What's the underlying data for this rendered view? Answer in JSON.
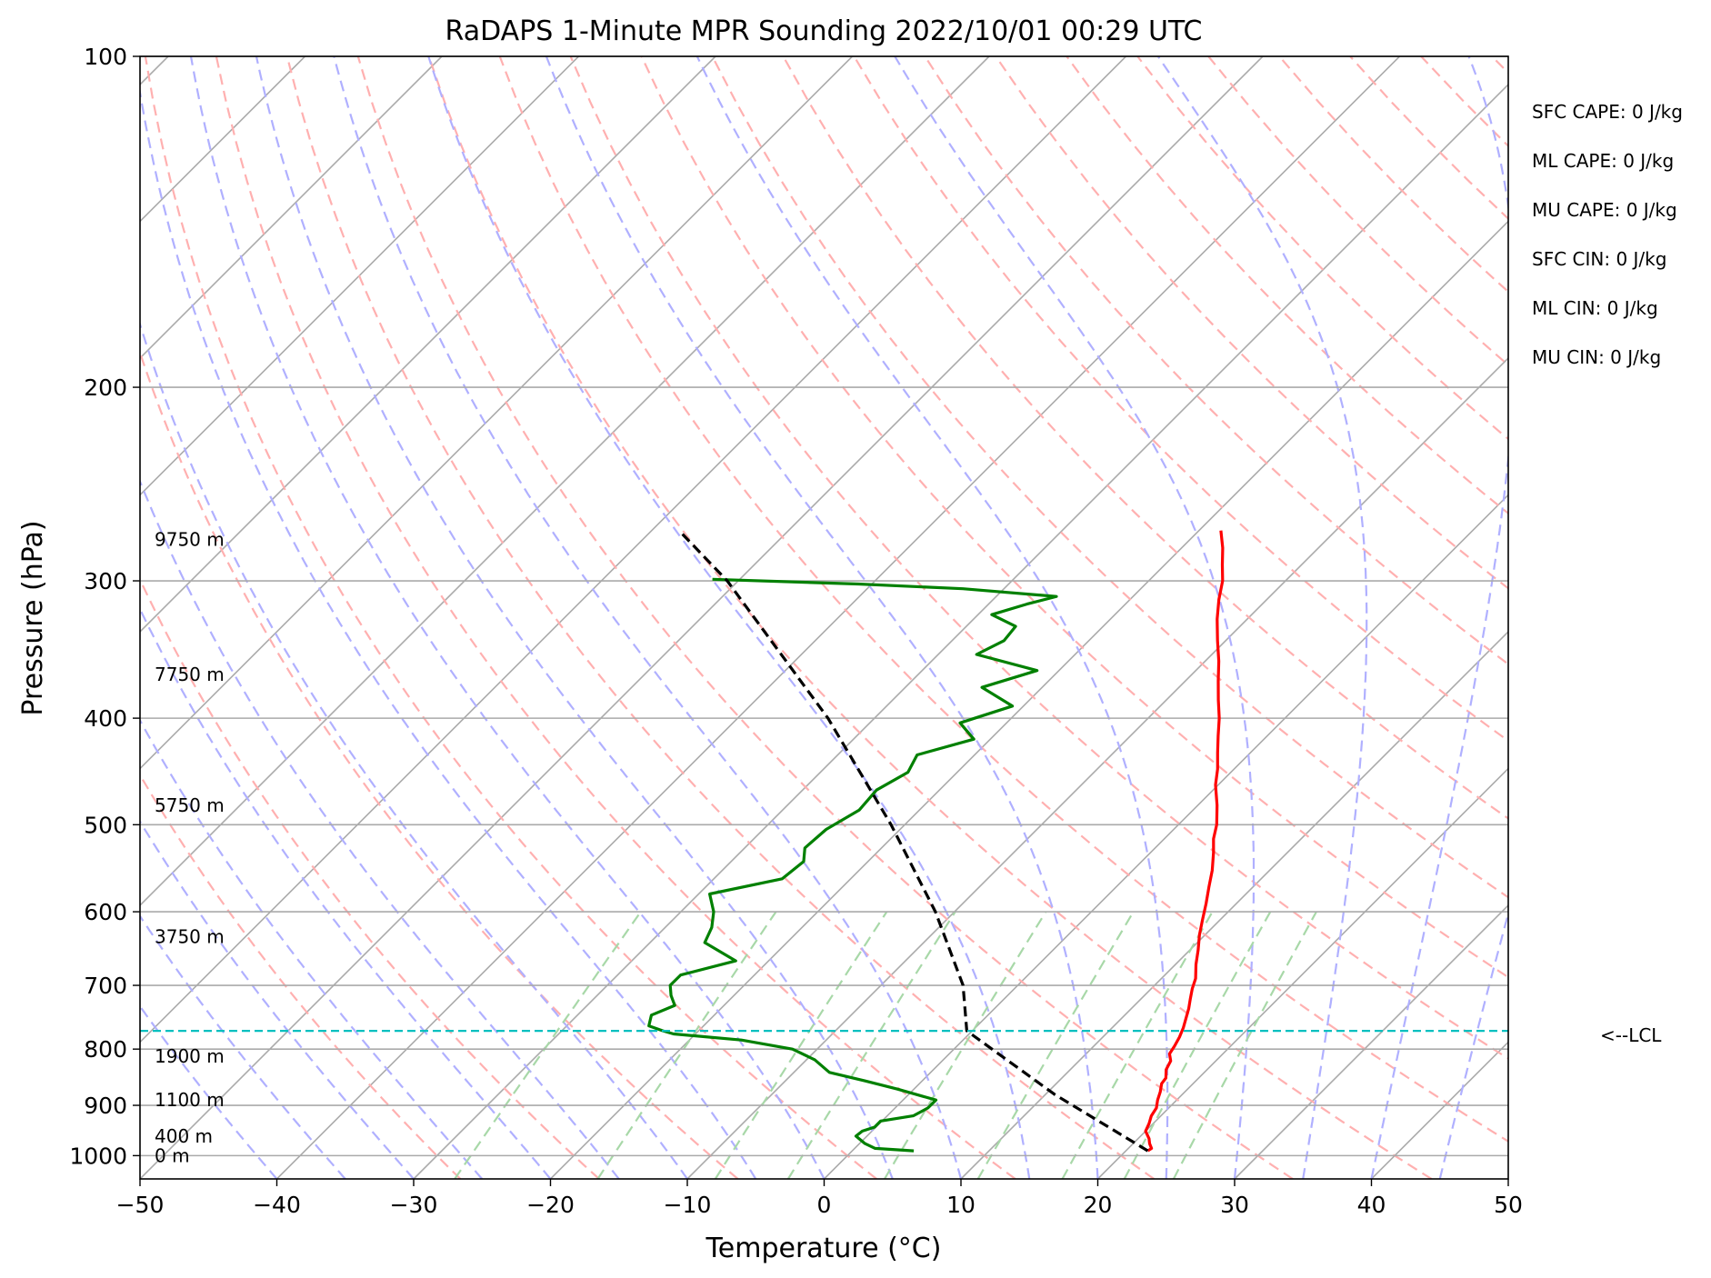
{
  "chart_data": {
    "type": "line",
    "subtype": "skew-t log-p",
    "title": "RaDAPS 1-Minute MPR Sounding 2022/10/01 00:29 UTC",
    "xlabel": "Temperature (°C)",
    "ylabel": "Pressure (hPa)",
    "xlim": [
      -50,
      50
    ],
    "ylim": [
      1050,
      100
    ],
    "y_scale": "log",
    "grid": true,
    "x_ticks": [
      "−50",
      "−40",
      "−30",
      "−20",
      "−10",
      "0",
      "10",
      "20",
      "30",
      "40",
      "50"
    ],
    "y_ticks": [
      100,
      200,
      300,
      400,
      500,
      600,
      700,
      800,
      900,
      1000
    ],
    "series": [
      {
        "name": "",
        "color": "#ff0000",
        "points": [
          [
            990,
            21.6
          ],
          [
            985,
            21.7
          ],
          [
            975,
            21.2
          ],
          [
            965,
            20.8
          ],
          [
            950,
            20.0
          ],
          [
            935,
            19.7
          ],
          [
            920,
            19.3
          ],
          [
            905,
            19.1
          ],
          [
            890,
            18.6
          ],
          [
            875,
            18.2
          ],
          [
            860,
            17.7
          ],
          [
            850,
            17.6
          ],
          [
            835,
            17.0
          ],
          [
            820,
            16.7
          ],
          [
            808,
            16.1
          ],
          [
            795,
            15.9
          ],
          [
            780,
            15.6
          ],
          [
            765,
            15.2
          ],
          [
            750,
            14.7
          ],
          [
            735,
            14.2
          ],
          [
            720,
            13.6
          ],
          [
            705,
            13.0
          ],
          [
            690,
            12.5
          ],
          [
            670,
            11.5
          ],
          [
            650,
            10.6
          ],
          [
            630,
            9.6
          ],
          [
            610,
            8.7
          ],
          [
            590,
            7.8
          ],
          [
            570,
            6.8
          ],
          [
            550,
            5.8
          ],
          [
            530,
            4.6
          ],
          [
            515,
            3.6
          ],
          [
            500,
            2.8
          ],
          [
            480,
            1.4
          ],
          [
            460,
            -0.2
          ],
          [
            445,
            -1.2
          ],
          [
            430,
            -2.4
          ],
          [
            415,
            -3.6
          ],
          [
            400,
            -4.8
          ],
          [
            385,
            -6.2
          ],
          [
            370,
            -7.6
          ],
          [
            355,
            -9.0
          ],
          [
            340,
            -10.6
          ],
          [
            325,
            -12.2
          ],
          [
            312,
            -13.5
          ],
          [
            300,
            -14.6
          ],
          [
            290,
            -15.8
          ],
          [
            280,
            -17.0
          ],
          [
            270,
            -18.4
          ]
        ]
      },
      {
        "name": "",
        "color": "#008000",
        "points": [
          [
            990,
            4.5
          ],
          [
            985,
            1.5
          ],
          [
            975,
            0.4
          ],
          [
            960,
            -0.8
          ],
          [
            950,
            -0.7
          ],
          [
            942,
            -0.1
          ],
          [
            930,
            -0.1
          ],
          [
            920,
            1.9
          ],
          [
            905,
            2.4
          ],
          [
            890,
            2.4
          ],
          [
            870,
            -1.2
          ],
          [
            855,
            -4.2
          ],
          [
            840,
            -7.4
          ],
          [
            818,
            -9.4
          ],
          [
            800,
            -11.8
          ],
          [
            785,
            -16.2
          ],
          [
            775,
            -21.6
          ],
          [
            770,
            -22.6
          ],
          [
            762,
            -24.0
          ],
          [
            745,
            -24.6
          ],
          [
            730,
            -23.6
          ],
          [
            715,
            -24.6
          ],
          [
            700,
            -25.4
          ],
          [
            685,
            -25.4
          ],
          [
            665,
            -22.4
          ],
          [
            640,
            -26.0
          ],
          [
            620,
            -26.6
          ],
          [
            600,
            -27.6
          ],
          [
            578,
            -29.2
          ],
          [
            560,
            -25.0
          ],
          [
            540,
            -24.7
          ],
          [
            525,
            -25.6
          ],
          [
            505,
            -25.4
          ],
          [
            485,
            -24.4
          ],
          [
            465,
            -24.6
          ],
          [
            448,
            -23.6
          ],
          [
            432,
            -24.2
          ],
          [
            418,
            -21.2
          ],
          [
            404,
            -23.4
          ],
          [
            390,
            -20.8
          ],
          [
            375,
            -24.4
          ],
          [
            362,
            -21.6
          ],
          [
            350,
            -27.2
          ],
          [
            340,
            -26.2
          ],
          [
            330,
            -26.4
          ],
          [
            322,
            -29.0
          ],
          [
            315,
            -27.2
          ],
          [
            310,
            -25.6
          ],
          [
            305,
            -33.0
          ],
          [
            302,
            -41.0
          ],
          [
            299,
            -52.0
          ]
        ]
      },
      {
        "name": "",
        "color": "#000000",
        "dashed": true,
        "points": [
          [
            990,
            21.6
          ],
          [
            880,
            10.7
          ],
          [
            770,
            -0.4
          ],
          [
            700,
            -4.0
          ],
          [
            600,
            -11.4
          ],
          [
            500,
            -21.0
          ],
          [
            400,
            -33.4
          ],
          [
            300,
            -50.8
          ],
          [
            270,
            -58.0
          ]
        ]
      }
    ],
    "lcl": {
      "label": "<--LCL",
      "pressure": 770,
      "color": "#00bfbf"
    },
    "height_labels": [
      {
        "label": "9750 m",
        "pressure": 275
      },
      {
        "label": "7750 m",
        "pressure": 365
      },
      {
        "label": "5750 m",
        "pressure": 480
      },
      {
        "label": "3750 m",
        "pressure": 632
      },
      {
        "label": "1900 m",
        "pressure": 812
      },
      {
        "label": "1100 m",
        "pressure": 890
      },
      {
        "label": "400 m",
        "pressure": 960
      },
      {
        "label": "0 m",
        "pressure": 1000
      }
    ],
    "indices": [
      "SFC CAPE: 0 J/kg",
      "ML CAPE: 0 J/kg",
      "MU CAPE: 0 J/kg",
      "SFC CIN: 0 J/kg",
      "ML CIN: 0 J/kg",
      "MU CIN: 0 J/kg"
    ],
    "reference_lines": {
      "isotherm_color": "#aaaaaa",
      "dry_adiabat_color": "#ffb0b0",
      "moist_adiabat_color": "#b0b0ff",
      "mixing_ratio_color": "#a8d8a8"
    }
  }
}
